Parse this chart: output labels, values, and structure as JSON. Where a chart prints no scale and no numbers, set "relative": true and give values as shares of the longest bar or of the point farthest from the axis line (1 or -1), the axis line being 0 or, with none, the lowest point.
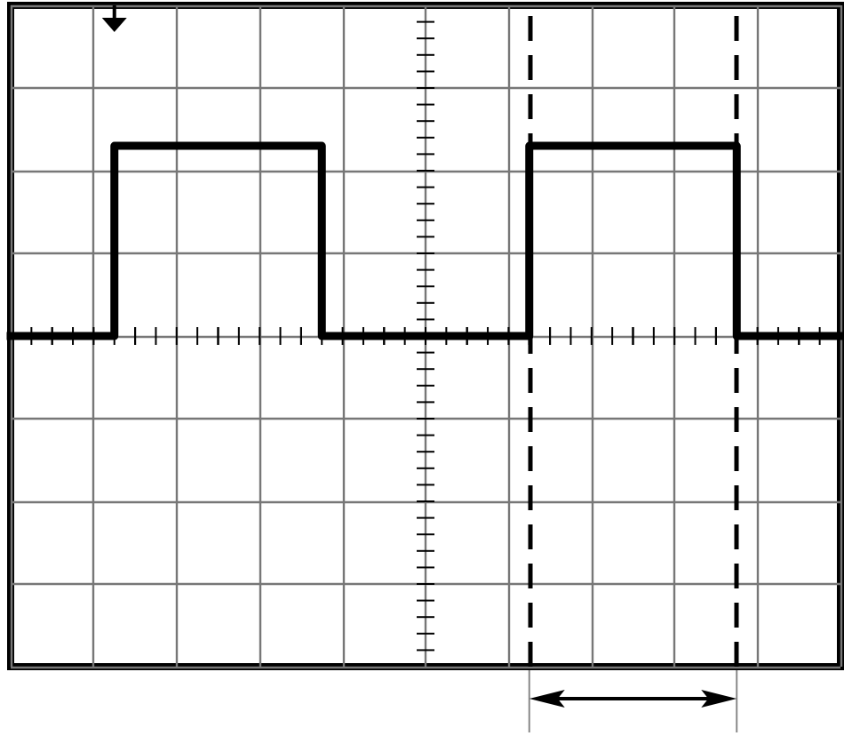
{
  "chart_data": {
    "type": "step",
    "categories": [
      null,
      null,
      null,
      null,
      null,
      null,
      null,
      null,
      null,
      null,
      null,
      null,
      null,
      null,
      null,
      null,
      null,
      null,
      null,
      null,
      null,
      null,
      null,
      null,
      null,
      null,
      null,
      null,
      null,
      null,
      null,
      null,
      null,
      null,
      null,
      null,
      null,
      null,
      null,
      null,
      null
    ],
    "relative": true,
    "series": [
      {
        "color": "#000000",
        "values": [
          0,
          0,
          0,
          0,
          0,
          1,
          1,
          1,
          1,
          1,
          1,
          1,
          1,
          1,
          1,
          0,
          0,
          0,
          0,
          0,
          0,
          0,
          0,
          0,
          0,
          1,
          1,
          1,
          1,
          1,
          1,
          1,
          1,
          1,
          1,
          0,
          0,
          0,
          0,
          0,
          0
        ]
      }
    ],
    "grid": true,
    "tick_labels": false,
    "marker": "none",
    "line_style": "solid"
  }
}
